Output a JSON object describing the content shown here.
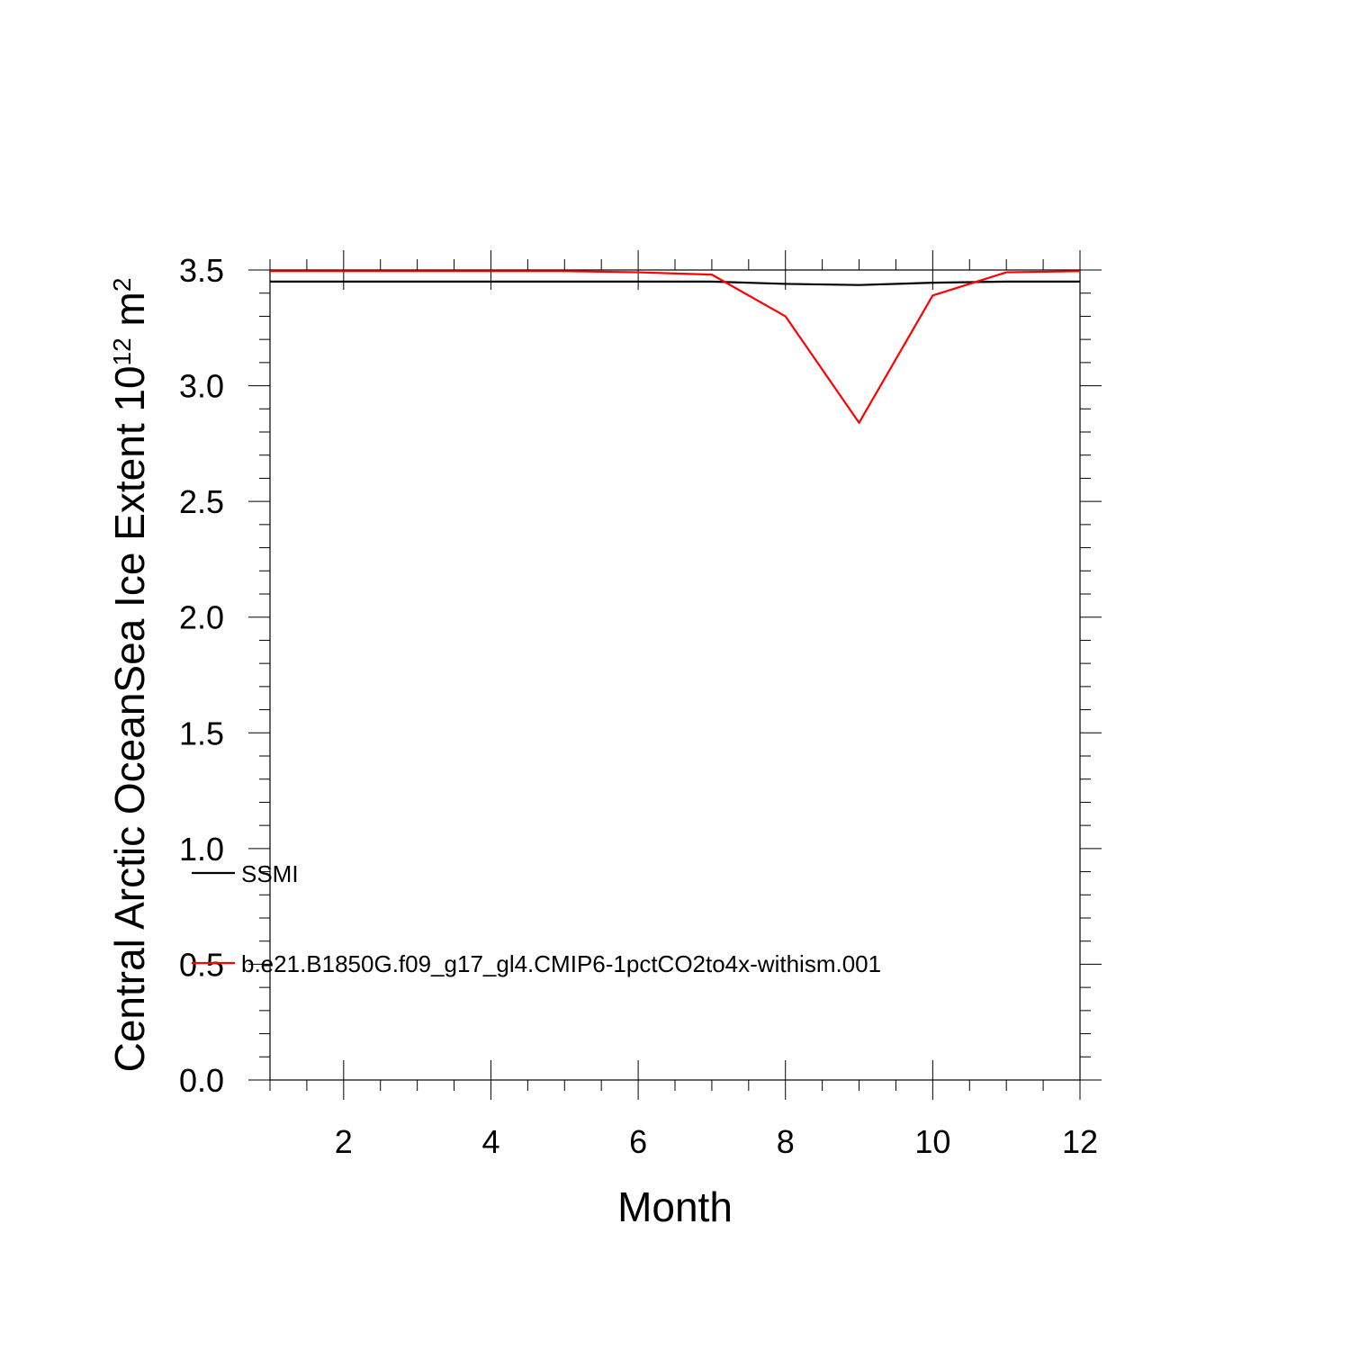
{
  "chart_data": {
    "type": "line",
    "xlabel": "Month",
    "ylabel_main": "Central Arctic OceanSea Ice Extent 10",
    "ylabel_exp1": "12",
    "ylabel_mid": " m",
    "ylabel_exp2": "2",
    "xlim": [
      1,
      12
    ],
    "ylim": [
      0,
      3.5
    ],
    "x_ticks": [
      2,
      4,
      6,
      8,
      10,
      12
    ],
    "x_tick_labels": [
      "2",
      "4",
      "6",
      "8",
      "10",
      "12"
    ],
    "y_ticks": [
      0,
      0.5,
      1,
      1.5,
      2,
      2.5,
      3,
      3.5
    ],
    "y_tick_labels": [
      "0.0",
      "0.5",
      "1.0",
      "1.5",
      "2.0",
      "2.5",
      "3.0",
      "3.5"
    ],
    "x": [
      1,
      2,
      3,
      4,
      5,
      6,
      7,
      8,
      9,
      10,
      11,
      12
    ],
    "series": [
      {
        "name": "SSMI",
        "color": "#000000",
        "values": [
          3.45,
          3.45,
          3.45,
          3.45,
          3.45,
          3.45,
          3.45,
          3.44,
          3.435,
          3.445,
          3.45,
          3.45
        ]
      },
      {
        "name": "b.e21.B1850G.f09_g17_gl4.CMIP6-1pctCO2to4x-withism.001",
        "color": "#ff0000",
        "values": [
          3.495,
          3.495,
          3.495,
          3.495,
          3.495,
          3.49,
          3.48,
          3.3,
          2.84,
          3.39,
          3.49,
          3.495
        ]
      }
    ],
    "legend_placement": "lower-left, inside plot"
  }
}
